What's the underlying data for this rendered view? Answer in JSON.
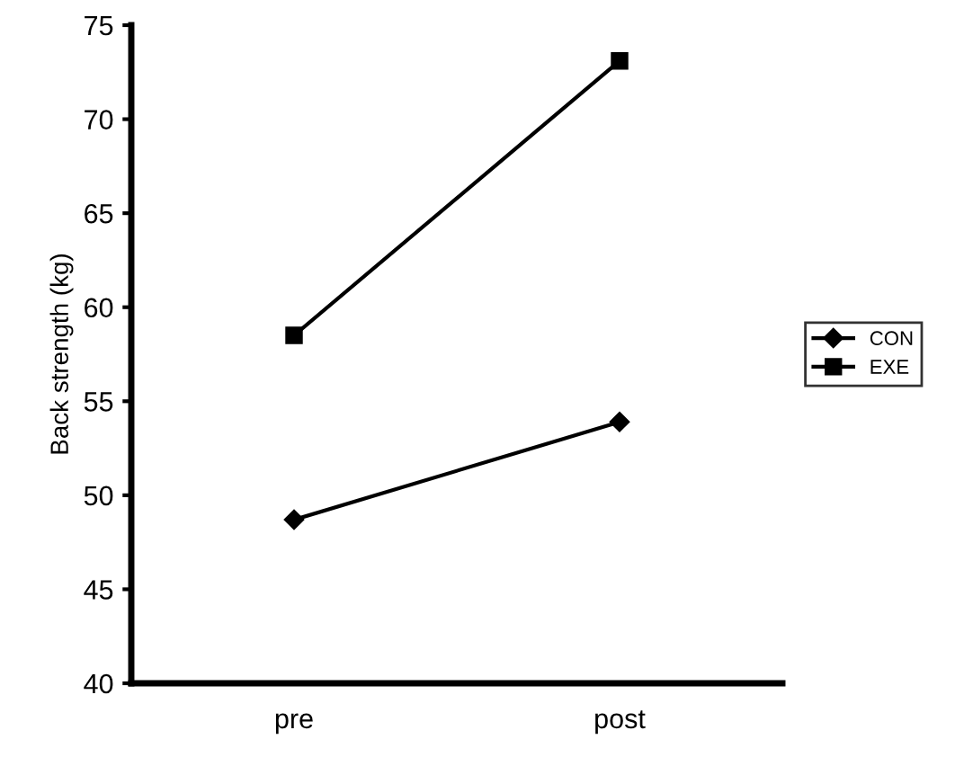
{
  "chart_data": {
    "type": "line",
    "ylabel": "Back strength (kg)",
    "categories": [
      "pre",
      "post"
    ],
    "series": [
      {
        "name": "CON",
        "color": "#000000",
        "values": [
          48.7,
          53.9
        ],
        "marker": "diamond"
      },
      {
        "name": "EXE",
        "color": "#000000",
        "values": [
          58.5,
          73.1
        ],
        "marker": "square"
      }
    ],
    "ylim": [
      40,
      75
    ],
    "yticks": [
      40,
      45,
      50,
      55,
      60,
      65,
      70,
      75
    ],
    "grid": false,
    "legend": "right",
    "line_style": "solid"
  }
}
